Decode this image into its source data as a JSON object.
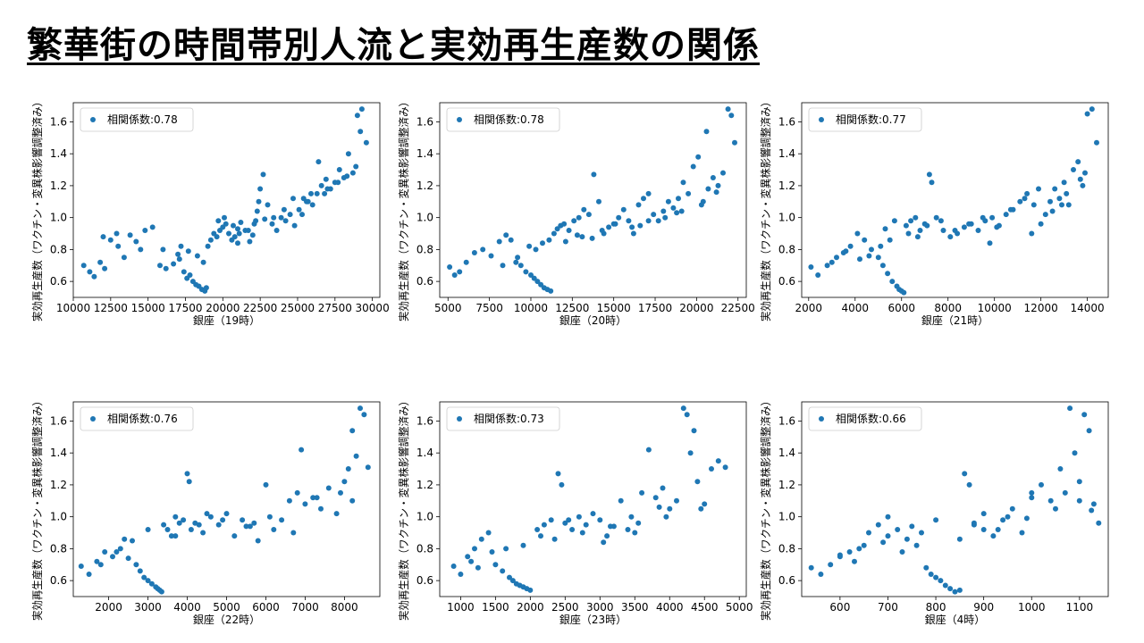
{
  "title": "繁華街の時間帯別人流と実効再生産数の関係",
  "colors": {
    "point": "#1f77b4"
  },
  "chart_data": [
    {
      "type": "scatter",
      "xlabel": "銀座（19時）",
      "ylabel": "実効再生産数（ワクチン・変異株影響調整済み）",
      "legend": "相関係数:0.78",
      "legend_position": "top-left",
      "xlim": [
        10000,
        30500
      ],
      "ylim": [
        0.5,
        1.72
      ],
      "xticks": [
        10000,
        12500,
        15000,
        17500,
        20000,
        22500,
        25000,
        27500,
        30000
      ],
      "yticks": [
        0.6,
        0.8,
        1.0,
        1.2,
        1.4,
        1.6
      ],
      "x": [
        10700,
        11100,
        11400,
        11800,
        12100,
        12500,
        12900,
        13400,
        13800,
        14200,
        14800,
        15300,
        15800,
        16200,
        16700,
        17100,
        17400,
        17600,
        17800,
        18000,
        18200,
        18400,
        18600,
        18800,
        18900,
        19000,
        19200,
        19400,
        19600,
        19800,
        20000,
        20200,
        20400,
        20600,
        20800,
        21000,
        21200,
        21500,
        21800,
        22000,
        22200,
        22300,
        22400,
        22500,
        22700,
        23000,
        23300,
        23600,
        23900,
        24200,
        24500,
        24800,
        25100,
        25400,
        25700,
        26000,
        26300,
        26600,
        26900,
        27200,
        27500,
        27800,
        28100,
        28400,
        28700,
        29000,
        29300,
        29600,
        17200,
        17700,
        18300,
        18700,
        19700,
        20100,
        20700,
        21100,
        21700,
        22100,
        23400,
        24100,
        24700,
        25300,
        25900,
        26400,
        27000,
        27700,
        28300,
        28900,
        12000,
        13000,
        14500,
        16000,
        17000,
        21000,
        22800,
        25600,
        26800,
        29200
      ],
      "y": [
        0.7,
        0.66,
        0.63,
        0.72,
        0.68,
        0.86,
        0.9,
        0.75,
        0.89,
        0.85,
        0.92,
        0.94,
        0.7,
        0.68,
        0.71,
        0.74,
        0.66,
        0.62,
        0.64,
        0.6,
        0.58,
        0.57,
        0.55,
        0.54,
        0.56,
        0.82,
        0.86,
        0.9,
        0.88,
        0.92,
        0.94,
        0.96,
        0.9,
        0.86,
        0.88,
        0.93,
        0.97,
        0.92,
        0.85,
        0.89,
        0.98,
        1.04,
        1.1,
        1.18,
        1.27,
        1.08,
        0.96,
        0.92,
        1.0,
        0.98,
        1.02,
        0.95,
        1.05,
        1.12,
        1.1,
        1.08,
        1.15,
        1.2,
        1.24,
        1.18,
        1.22,
        1.3,
        1.25,
        1.4,
        1.28,
        1.64,
        1.68,
        1.47,
        0.82,
        0.79,
        0.76,
        0.72,
        0.98,
        1.0,
        0.95,
        0.9,
        0.92,
        0.96,
        1.0,
        1.05,
        1.12,
        1.02,
        1.15,
        1.35,
        1.18,
        1.22,
        1.26,
        1.32,
        0.88,
        0.82,
        0.8,
        0.8,
        0.77,
        0.84,
        0.99,
        1.1,
        1.15,
        1.54
      ]
    },
    {
      "type": "scatter",
      "xlabel": "銀座（20時）",
      "ylabel": "実効再生産数（ワクチン・変異株影響調整済み）",
      "legend": "相関係数:0.78",
      "legend_position": "top-left",
      "xlim": [
        4500,
        23000
      ],
      "ylim": [
        0.5,
        1.72
      ],
      "xticks": [
        5000,
        7500,
        10000,
        12500,
        15000,
        17500,
        20000,
        22500
      ],
      "yticks": [
        0.6,
        0.8,
        1.0,
        1.2,
        1.4,
        1.6
      ],
      "x": [
        5100,
        5400,
        5700,
        6100,
        6600,
        7100,
        7600,
        8100,
        8500,
        8800,
        9100,
        9400,
        9700,
        10000,
        10200,
        10400,
        10600,
        10800,
        11000,
        11200,
        11400,
        11600,
        11800,
        12000,
        12300,
        12600,
        12900,
        13200,
        13500,
        13800,
        14100,
        14400,
        14700,
        15000,
        15300,
        15600,
        15900,
        16200,
        16500,
        16800,
        17100,
        17400,
        17700,
        18000,
        18300,
        18600,
        18900,
        19200,
        19500,
        19800,
        20100,
        20400,
        20700,
        21000,
        21300,
        21600,
        21900,
        22100,
        22300,
        9900,
        10300,
        10700,
        11100,
        12100,
        13100,
        14300,
        15100,
        16100,
        17100,
        18100,
        19100,
        20300,
        21200,
        8300,
        9200,
        12800,
        13700,
        16600,
        18800,
        20600
      ],
      "y": [
        0.69,
        0.64,
        0.66,
        0.72,
        0.78,
        0.8,
        0.76,
        0.85,
        0.89,
        0.86,
        0.72,
        0.7,
        0.66,
        0.64,
        0.62,
        0.6,
        0.58,
        0.56,
        0.55,
        0.54,
        0.9,
        0.93,
        0.95,
        0.96,
        0.92,
        0.98,
        1.0,
        1.05,
        1.02,
        1.27,
        1.1,
        0.9,
        0.94,
        0.96,
        1.0,
        1.05,
        0.98,
        0.9,
        1.08,
        1.12,
        1.15,
        1.02,
        0.98,
        1.04,
        1.1,
        1.06,
        1.12,
        1.22,
        1.15,
        1.32,
        1.38,
        1.1,
        1.18,
        1.25,
        1.2,
        1.28,
        1.68,
        1.64,
        1.47,
        0.82,
        0.8,
        0.84,
        0.86,
        0.85,
        0.88,
        0.92,
        0.96,
        0.94,
        0.98,
        1.0,
        1.04,
        1.08,
        1.16,
        0.7,
        0.75,
        0.89,
        0.87,
        0.95,
        1.03,
        1.54
      ]
    },
    {
      "type": "scatter",
      "xlabel": "銀座（21時）",
      "ylabel": "実効再生産数（ワクチン・変異株影響調整済み）",
      "legend": "相関係数:0.77",
      "legend_position": "top-left",
      "xlim": [
        1700,
        14900
      ],
      "ylim": [
        0.5,
        1.72
      ],
      "xticks": [
        2000,
        4000,
        6000,
        8000,
        10000,
        12000,
        14000
      ],
      "yticks": [
        0.6,
        0.8,
        1.0,
        1.2,
        1.4,
        1.6
      ],
      "x": [
        2100,
        2400,
        2800,
        3200,
        3500,
        3800,
        4100,
        4400,
        4700,
        5000,
        5200,
        5400,
        5600,
        5800,
        5900,
        6000,
        6100,
        6200,
        6400,
        6600,
        6800,
        7000,
        7200,
        7300,
        7500,
        7800,
        8100,
        8400,
        8700,
        9000,
        9300,
        9600,
        9900,
        10200,
        10500,
        10800,
        11100,
        11400,
        11700,
        12000,
        12200,
        12400,
        12600,
        12800,
        13000,
        13200,
        13400,
        13600,
        13800,
        14000,
        14200,
        14400,
        4200,
        4600,
        5100,
        5500,
        6300,
        6700,
        7100,
        7700,
        8300,
        8900,
        9500,
        10100,
        10700,
        11300,
        11900,
        12500,
        13100,
        13700,
        3000,
        3600,
        5300,
        5700,
        9800,
        11600,
        12900,
        13900
      ],
      "y": [
        0.69,
        0.64,
        0.7,
        0.75,
        0.78,
        0.82,
        0.9,
        0.86,
        0.8,
        0.75,
        0.7,
        0.65,
        0.6,
        0.57,
        0.55,
        0.54,
        0.53,
        0.95,
        0.98,
        1.0,
        0.92,
        0.96,
        1.27,
        1.22,
        1.0,
        0.92,
        0.88,
        0.9,
        0.94,
        0.96,
        0.92,
        0.98,
        1.0,
        0.95,
        1.02,
        1.05,
        1.1,
        1.15,
        1.08,
        0.96,
        1.02,
        1.1,
        1.18,
        1.12,
        1.22,
        1.08,
        1.3,
        1.35,
        1.2,
        1.65,
        1.68,
        1.47,
        0.74,
        0.76,
        0.82,
        0.86,
        0.9,
        0.88,
        0.95,
        0.98,
        0.92,
        0.96,
        1.0,
        0.94,
        1.05,
        1.12,
        1.18,
        1.04,
        1.15,
        1.24,
        0.72,
        0.79,
        0.93,
        0.98,
        0.84,
        0.9,
        1.08,
        1.28
      ]
    },
    {
      "type": "scatter",
      "xlabel": "銀座（22時）",
      "ylabel": "実効再生産数（ワクチン・変異株影響調整済み）",
      "legend": "相関係数:0.76",
      "legend_position": "top-left",
      "xlim": [
        1100,
        8900
      ],
      "ylim": [
        0.5,
        1.72
      ],
      "xticks": [
        1000,
        2000,
        3000,
        4000,
        5000,
        6000,
        7000,
        8000
      ],
      "yticks": [
        0.6,
        0.8,
        1.0,
        1.2,
        1.4,
        1.6
      ],
      "x": [
        1300,
        1500,
        1700,
        1900,
        2100,
        2300,
        2500,
        2700,
        2800,
        2900,
        3000,
        3100,
        3200,
        3250,
        3300,
        3350,
        3400,
        3500,
        3600,
        3700,
        3800,
        3900,
        4000,
        4050,
        4100,
        4200,
        4400,
        4600,
        4800,
        5000,
        5200,
        5400,
        5600,
        5800,
        6000,
        6200,
        6400,
        6600,
        6800,
        7000,
        7200,
        7400,
        7600,
        7800,
        8000,
        8100,
        8200,
        8300,
        8400,
        8500,
        8600,
        2200,
        2600,
        3000,
        3700,
        4300,
        4900,
        5500,
        6100,
        6700,
        7300,
        7900,
        1800,
        2400,
        4500,
        5700,
        6900,
        8200
      ],
      "y": [
        0.69,
        0.64,
        0.72,
        0.78,
        0.75,
        0.8,
        0.74,
        0.7,
        0.66,
        0.62,
        0.6,
        0.58,
        0.56,
        0.55,
        0.54,
        0.53,
        0.95,
        0.92,
        0.88,
        1.0,
        0.96,
        0.98,
        1.27,
        1.22,
        0.92,
        0.96,
        0.9,
        1.0,
        0.95,
        1.02,
        0.88,
        0.98,
        0.94,
        0.85,
        1.2,
        0.92,
        0.98,
        1.1,
        1.15,
        1.08,
        1.12,
        1.05,
        1.18,
        1.02,
        1.22,
        1.3,
        1.1,
        1.38,
        1.68,
        1.64,
        1.31,
        0.78,
        0.85,
        0.92,
        0.88,
        0.95,
        0.98,
        0.94,
        1.0,
        0.9,
        1.12,
        1.15,
        0.7,
        0.86,
        1.02,
        0.96,
        1.42,
        1.54
      ]
    },
    {
      "type": "scatter",
      "xlabel": "銀座（23時）",
      "ylabel": "実効再生産数（ワクチン・変異株影響調整済み）",
      "legend": "相関係数:0.73",
      "legend_position": "top-left",
      "xlim": [
        700,
        5100
      ],
      "ylim": [
        0.5,
        1.72
      ],
      "xticks": [
        1000,
        1500,
        2000,
        2500,
        3000,
        3500,
        4000,
        4500,
        5000
      ],
      "yticks": [
        0.6,
        0.8,
        1.0,
        1.2,
        1.4,
        1.6
      ],
      "x": [
        900,
        1000,
        1100,
        1200,
        1300,
        1400,
        1500,
        1600,
        1700,
        1750,
        1800,
        1850,
        1900,
        1950,
        2000,
        2100,
        2200,
        2300,
        2400,
        2450,
        2500,
        2600,
        2700,
        2800,
        2900,
        3000,
        3100,
        3200,
        3300,
        3400,
        3500,
        3600,
        3700,
        3800,
        3900,
        4000,
        4100,
        4200,
        4250,
        4300,
        4400,
        4500,
        4600,
        4700,
        4800,
        1150,
        1450,
        1900,
        2350,
        2750,
        3150,
        3550,
        3950,
        4450,
        1250,
        1650,
        2150,
        2550,
        3050,
        3450,
        3850,
        4350
      ],
      "y": [
        0.69,
        0.64,
        0.75,
        0.8,
        0.86,
        0.9,
        0.7,
        0.66,
        0.62,
        0.6,
        0.58,
        0.57,
        0.56,
        0.55,
        0.54,
        0.92,
        0.95,
        0.98,
        1.27,
        1.2,
        0.96,
        0.92,
        1.0,
        0.95,
        1.02,
        0.98,
        0.88,
        0.94,
        1.1,
        0.92,
        0.9,
        1.15,
        1.42,
        1.12,
        1.18,
        1.05,
        1.1,
        1.68,
        1.64,
        1.4,
        1.22,
        1.08,
        1.3,
        1.35,
        1.31,
        0.72,
        0.78,
        0.82,
        0.86,
        0.9,
        0.94,
        0.96,
        1.0,
        1.05,
        0.68,
        0.8,
        0.88,
        0.98,
        0.84,
        1.0,
        1.06,
        1.54
      ]
    },
    {
      "type": "scatter",
      "xlabel": "銀座（4時）",
      "ylabel": "実効再生産数（ワクチン・変異株影響調整済み）",
      "legend": "相関係数:0.66",
      "legend_position": "top-left",
      "xlim": [
        520,
        1160
      ],
      "ylim": [
        0.5,
        1.72
      ],
      "xticks": [
        600,
        700,
        800,
        900,
        1000,
        1100
      ],
      "yticks": [
        0.6,
        0.8,
        1.0,
        1.2,
        1.4,
        1.6
      ],
      "x": [
        540,
        560,
        580,
        600,
        620,
        640,
        660,
        680,
        700,
        720,
        740,
        760,
        780,
        790,
        800,
        810,
        820,
        830,
        840,
        850,
        860,
        870,
        880,
        900,
        920,
        940,
        960,
        980,
        1000,
        1020,
        1040,
        1060,
        1080,
        1090,
        1100,
        1110,
        1120,
        1130,
        1140,
        600,
        650,
        700,
        750,
        800,
        850,
        900,
        950,
        1000,
        1050,
        1100,
        630,
        690,
        730,
        770,
        880,
        930,
        990,
        1070,
        1125
      ],
      "y": [
        0.68,
        0.64,
        0.7,
        0.75,
        0.78,
        0.8,
        0.9,
        0.95,
        1.0,
        0.92,
        0.86,
        0.82,
        0.68,
        0.64,
        0.62,
        0.6,
        0.57,
        0.55,
        0.53,
        0.54,
        1.27,
        1.2,
        0.95,
        0.92,
        0.88,
        0.98,
        1.05,
        0.9,
        1.15,
        1.2,
        1.1,
        1.3,
        1.68,
        1.4,
        1.22,
        1.64,
        1.54,
        1.08,
        0.96,
        0.76,
        0.82,
        0.88,
        0.94,
        0.98,
        0.86,
        1.02,
        1.0,
        1.12,
        1.05,
        1.1,
        0.72,
        0.84,
        0.78,
        0.9,
        0.96,
        0.92,
        0.99,
        1.15,
        1.04
      ]
    }
  ]
}
